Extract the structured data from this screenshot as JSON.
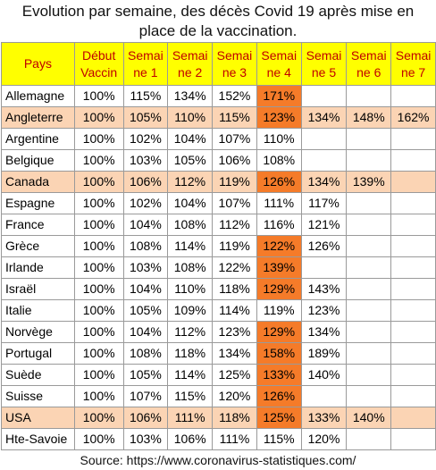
{
  "title": {
    "line1": "Evolution par semaine, des décès Covid 19 après mise en",
    "line2": "place de la vaccination."
  },
  "colors": {
    "header_bg": "#ffff00",
    "header_text": "#c00000",
    "highlight_row": "#fbd4b4",
    "peak_cell": "#f57b29"
  },
  "table": {
    "headers": [
      [
        "Pays",
        ""
      ],
      [
        "Début",
        "Vaccin"
      ],
      [
        "Semai",
        "ne 1"
      ],
      [
        "Semai",
        "ne 2"
      ],
      [
        "Semai",
        "ne 3"
      ],
      [
        "Semai",
        "ne 4"
      ],
      [
        "Semai",
        "ne 5"
      ],
      [
        "Semai",
        "ne 6"
      ],
      [
        "Semai",
        "ne 7"
      ]
    ],
    "rows": [
      {
        "country": "Allemagne",
        "cells": [
          "100%",
          "115%",
          "134%",
          "152%",
          "171%",
          "",
          "",
          ""
        ],
        "highlight": false,
        "peak": 4
      },
      {
        "country": "Angleterre",
        "cells": [
          "100%",
          "105%",
          "110%",
          "115%",
          "123%",
          "134%",
          "148%",
          "162%"
        ],
        "highlight": true,
        "peak": 4
      },
      {
        "country": "Argentine",
        "cells": [
          "100%",
          "102%",
          "104%",
          "107%",
          "110%",
          "",
          "",
          ""
        ],
        "highlight": false,
        "peak": -1
      },
      {
        "country": "Belgique",
        "cells": [
          "100%",
          "103%",
          "105%",
          "106%",
          "108%",
          "",
          "",
          ""
        ],
        "highlight": false,
        "peak": -1
      },
      {
        "country": "Canada",
        "cells": [
          "100%",
          "106%",
          "112%",
          "119%",
          "126%",
          "134%",
          "139%",
          ""
        ],
        "highlight": true,
        "peak": 4
      },
      {
        "country": "Espagne",
        "cells": [
          "100%",
          "102%",
          "104%",
          "107%",
          "111%",
          "117%",
          "",
          ""
        ],
        "highlight": false,
        "peak": -1
      },
      {
        "country": "France",
        "cells": [
          "100%",
          "104%",
          "108%",
          "112%",
          "116%",
          "121%",
          "",
          ""
        ],
        "highlight": false,
        "peak": -1
      },
      {
        "country": "Grèce",
        "cells": [
          "100%",
          "108%",
          "114%",
          "119%",
          "122%",
          "126%",
          "",
          ""
        ],
        "highlight": false,
        "peak": 4
      },
      {
        "country": "Irlande",
        "cells": [
          "100%",
          "103%",
          "108%",
          "122%",
          "139%",
          "",
          "",
          ""
        ],
        "highlight": false,
        "peak": 4
      },
      {
        "country": "Israël",
        "cells": [
          "100%",
          "104%",
          "110%",
          "118%",
          "129%",
          "143%",
          "",
          ""
        ],
        "highlight": false,
        "peak": 4
      },
      {
        "country": "Italie",
        "cells": [
          "100%",
          "105%",
          "109%",
          "114%",
          "119%",
          "123%",
          "",
          ""
        ],
        "highlight": false,
        "peak": -1
      },
      {
        "country": "Norvège",
        "cells": [
          "100%",
          "104%",
          "112%",
          "123%",
          "129%",
          "134%",
          "",
          ""
        ],
        "highlight": false,
        "peak": 4
      },
      {
        "country": "Portugal",
        "cells": [
          "100%",
          "108%",
          "118%",
          "134%",
          "158%",
          "189%",
          "",
          ""
        ],
        "highlight": false,
        "peak": 4
      },
      {
        "country": "Suède",
        "cells": [
          "100%",
          "105%",
          "114%",
          "125%",
          "133%",
          "140%",
          "",
          ""
        ],
        "highlight": false,
        "peak": 4
      },
      {
        "country": "Suisse",
        "cells": [
          "100%",
          "107%",
          "115%",
          "120%",
          "126%",
          "",
          "",
          ""
        ],
        "highlight": false,
        "peak": 4
      },
      {
        "country": "USA",
        "cells": [
          "100%",
          "106%",
          "111%",
          "118%",
          "125%",
          "133%",
          "140%",
          ""
        ],
        "highlight": true,
        "peak": 4
      },
      {
        "country": "Hte-Savoie",
        "cells": [
          "100%",
          "103%",
          "106%",
          "111%",
          "115%",
          "120%",
          "",
          ""
        ],
        "highlight": false,
        "peak": -1
      }
    ]
  },
  "source": "Source: https://www.coronavirus-statistiques.com/"
}
